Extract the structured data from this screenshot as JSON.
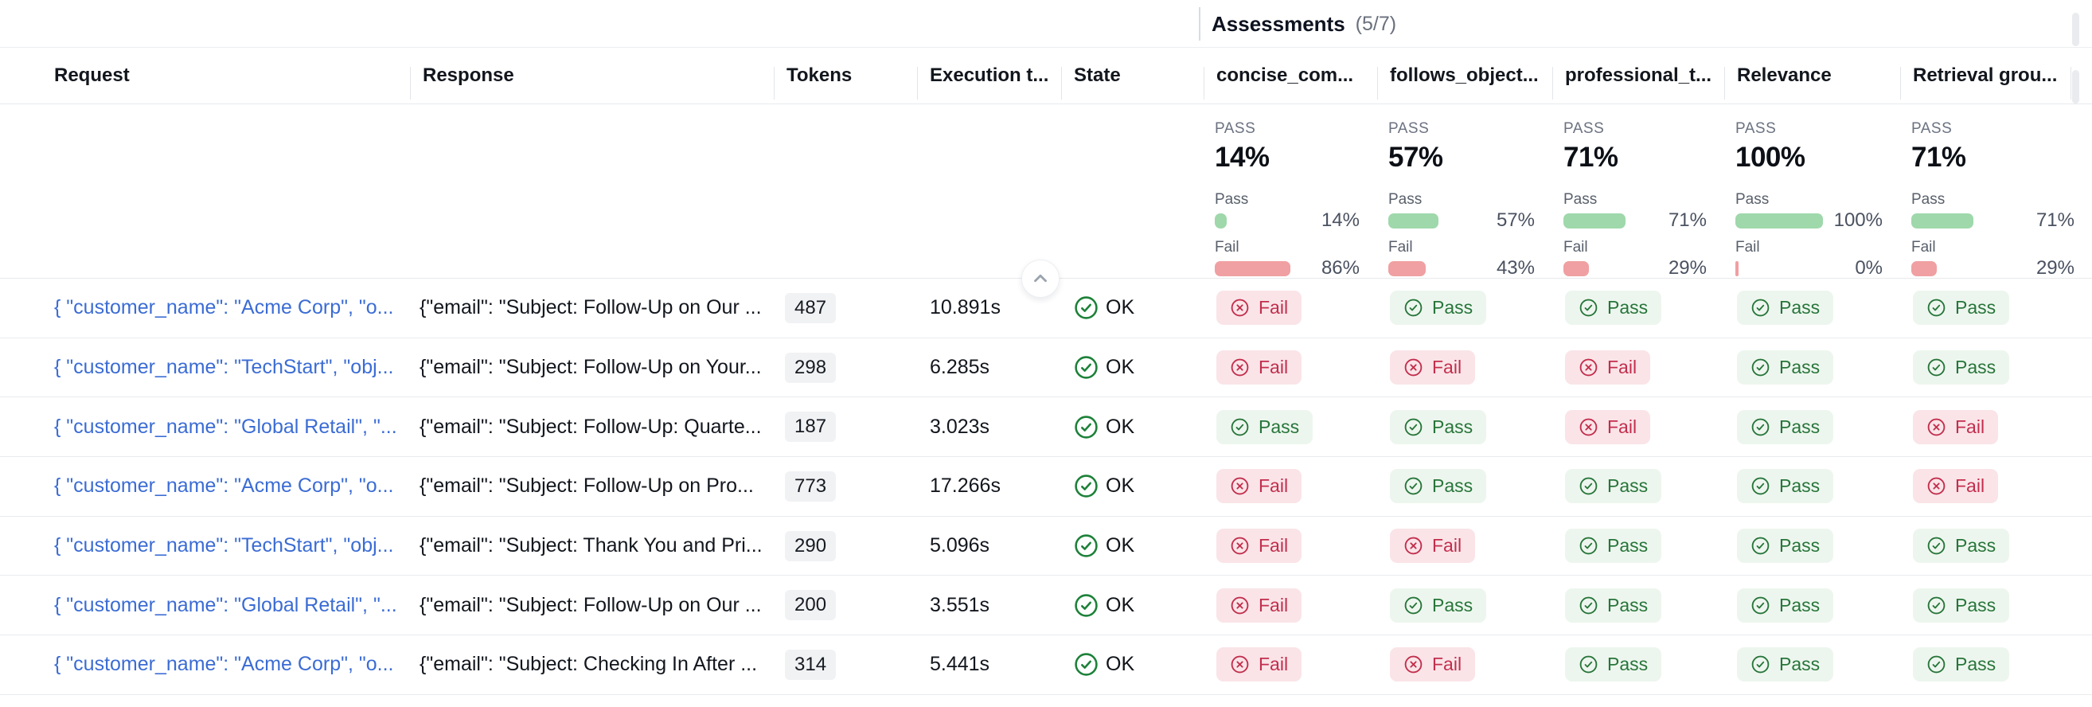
{
  "panel": {
    "title": "Assessments",
    "count": "(5/7)"
  },
  "table": {
    "columns": [
      "Request",
      "Response",
      "Tokens",
      "Execution t...",
      "State",
      "concise_com...",
      "follows_object...",
      "professional_t...",
      "Relevance",
      "Retrieval grou..."
    ],
    "rows": [
      {
        "request": "{ \"customer_name\": \"Acme Corp\", \"o...",
        "response": "{\"email\": \"Subject: Follow-Up on Our ...",
        "tokens": "487",
        "execution": "10.891s",
        "state": "OK",
        "assessments": [
          "fail",
          "pass",
          "pass",
          "pass",
          "pass"
        ]
      },
      {
        "request": "{ \"customer_name\": \"TechStart\", \"obj...",
        "response": "{\"email\": \"Subject: Follow-Up on Your...",
        "tokens": "298",
        "execution": "6.285s",
        "state": "OK",
        "assessments": [
          "fail",
          "fail",
          "fail",
          "pass",
          "pass"
        ]
      },
      {
        "request": "{ \"customer_name\": \"Global Retail\", \"...",
        "response": "{\"email\": \"Subject: Follow-Up: Quarte...",
        "tokens": "187",
        "execution": "3.023s",
        "state": "OK",
        "assessments": [
          "pass",
          "pass",
          "fail",
          "pass",
          "fail"
        ]
      },
      {
        "request": "{ \"customer_name\": \"Acme Corp\", \"o...",
        "response": "{\"email\": \"Subject: Follow-Up on Pro...",
        "tokens": "773",
        "execution": "17.266s",
        "state": "OK",
        "assessments": [
          "fail",
          "pass",
          "pass",
          "pass",
          "fail"
        ]
      },
      {
        "request": "{ \"customer_name\": \"TechStart\", \"obj...",
        "response": "{\"email\": \"Subject: Thank You and Pri...",
        "tokens": "290",
        "execution": "5.096s",
        "state": "OK",
        "assessments": [
          "fail",
          "fail",
          "pass",
          "pass",
          "pass"
        ]
      },
      {
        "request": "{ \"customer_name\": \"Global Retail\", \"...",
        "response": "{\"email\": \"Subject: Follow-Up on Our ...",
        "tokens": "200",
        "execution": "3.551s",
        "state": "OK",
        "assessments": [
          "fail",
          "pass",
          "pass",
          "pass",
          "pass"
        ]
      },
      {
        "request": "{ \"customer_name\": \"Acme Corp\", \"o...",
        "response": "{\"email\": \"Subject: Checking In After ...",
        "tokens": "314",
        "execution": "5.441s",
        "state": "OK",
        "assessments": [
          "fail",
          "fail",
          "pass",
          "pass",
          "pass"
        ]
      }
    ]
  },
  "summary": {
    "metrics": [
      {
        "name": "concise_com...",
        "pass_caps": "PASS",
        "pass_big": "14%",
        "pass_label": "Pass",
        "pass_value": 14,
        "pass_display": "14%",
        "fail_label": "Fail",
        "fail_value": 86,
        "fail_display": "86%"
      },
      {
        "name": "follows_object...",
        "pass_caps": "PASS",
        "pass_big": "57%",
        "pass_label": "Pass",
        "pass_value": 57,
        "pass_display": "57%",
        "fail_label": "Fail",
        "fail_value": 43,
        "fail_display": "43%"
      },
      {
        "name": "professional_t...",
        "pass_caps": "PASS",
        "pass_big": "71%",
        "pass_label": "Pass",
        "pass_value": 71,
        "pass_display": "71%",
        "fail_label": "Fail",
        "fail_value": 29,
        "fail_display": "29%"
      },
      {
        "name": "Relevance",
        "pass_caps": "PASS",
        "pass_big": "100%",
        "pass_label": "Pass",
        "pass_value": 100,
        "pass_display": "100%",
        "fail_label": "Fail",
        "fail_value": 0,
        "fail_display": "0%"
      },
      {
        "name": "Retrieval grou...",
        "pass_caps": "PASS",
        "pass_big": "71%",
        "pass_label": "Pass",
        "pass_value": 71,
        "pass_display": "71%",
        "fail_label": "Fail",
        "fail_value": 29,
        "fail_display": "29%"
      }
    ]
  },
  "badges": {
    "pass": "Pass",
    "fail": "Fail"
  },
  "colors": {
    "link": "#3b6cd4",
    "pass_text": "#27753a",
    "pass_bg": "#edf6ee",
    "fail_text": "#c22e4c",
    "fail_bg": "#fae4e8",
    "bar_pass": "#9fd8ab",
    "bar_fail": "#f0a0a2",
    "ok_green": "#1d8139"
  }
}
